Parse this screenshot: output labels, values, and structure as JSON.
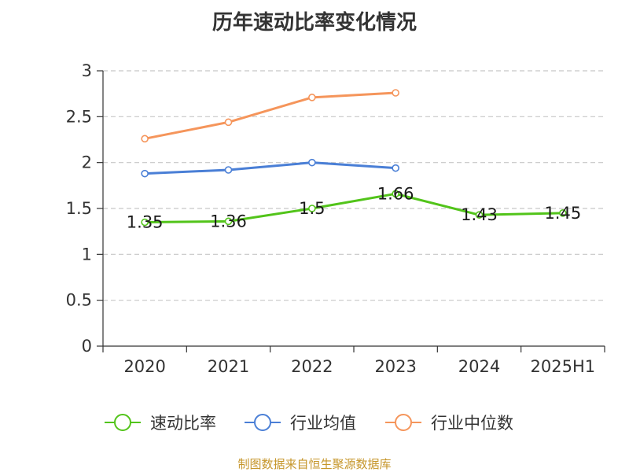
{
  "title": "历年速动比率变化情况",
  "source": "制图数据来自恒生聚源数据库",
  "chart_data": {
    "type": "line",
    "categories": [
      "2020",
      "2021",
      "2022",
      "2023",
      "2024",
      "2025H1"
    ],
    "ylim": [
      0,
      3
    ],
    "yticks": [
      0,
      0.5,
      1,
      1.5,
      2,
      2.5,
      3
    ],
    "ytick_labels": [
      "0",
      "0.5",
      "1",
      "1.5",
      "2",
      "2.5",
      "3"
    ],
    "grid": true,
    "legend_position": "bottom",
    "series": [
      {
        "name": "速动比率",
        "color": "#52c41a",
        "values": [
          1.35,
          1.36,
          1.5,
          1.66,
          1.43,
          1.45
        ],
        "labels": [
          "1.35",
          "1.36",
          "1.5",
          "1.66",
          "1.43",
          "1.45"
        ]
      },
      {
        "name": "行业均值",
        "color": "#4a7fd6",
        "values": [
          1.88,
          1.92,
          2.0,
          1.94,
          null,
          null
        ]
      },
      {
        "name": "行业中位数",
        "color": "#f5955b",
        "values": [
          2.26,
          2.44,
          2.71,
          2.76,
          null,
          null
        ]
      }
    ]
  }
}
